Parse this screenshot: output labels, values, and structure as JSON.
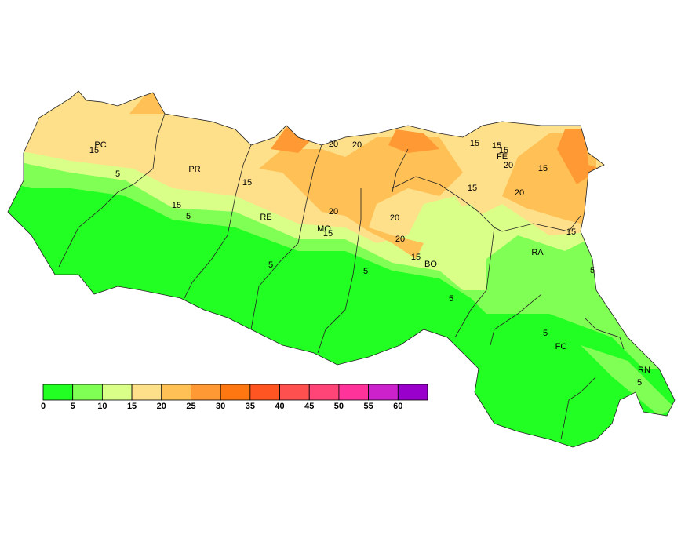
{
  "provinces": [
    "PC",
    "PR",
    "RE",
    "MO",
    "BO",
    "FE",
    "RA",
    "FC",
    "RN"
  ],
  "contour_labels": [
    15,
    5,
    15,
    5,
    15,
    5,
    20,
    20,
    20,
    15,
    20,
    20,
    15,
    5,
    5,
    15,
    15,
    15,
    20,
    15,
    15,
    20,
    15,
    5,
    5,
    5
  ],
  "legend": {
    "colors": [
      "#22ff22",
      "#80ff55",
      "#d9ff88",
      "#ffe08a",
      "#ffc055",
      "#ff9933",
      "#ff7711",
      "#ff5522",
      "#ff5050",
      "#ff4477",
      "#ff3399",
      "#cc22cc",
      "#9900cc"
    ],
    "ticks": [
      0,
      5,
      10,
      15,
      20,
      25,
      30,
      35,
      40,
      45,
      50,
      55,
      60
    ]
  }
}
